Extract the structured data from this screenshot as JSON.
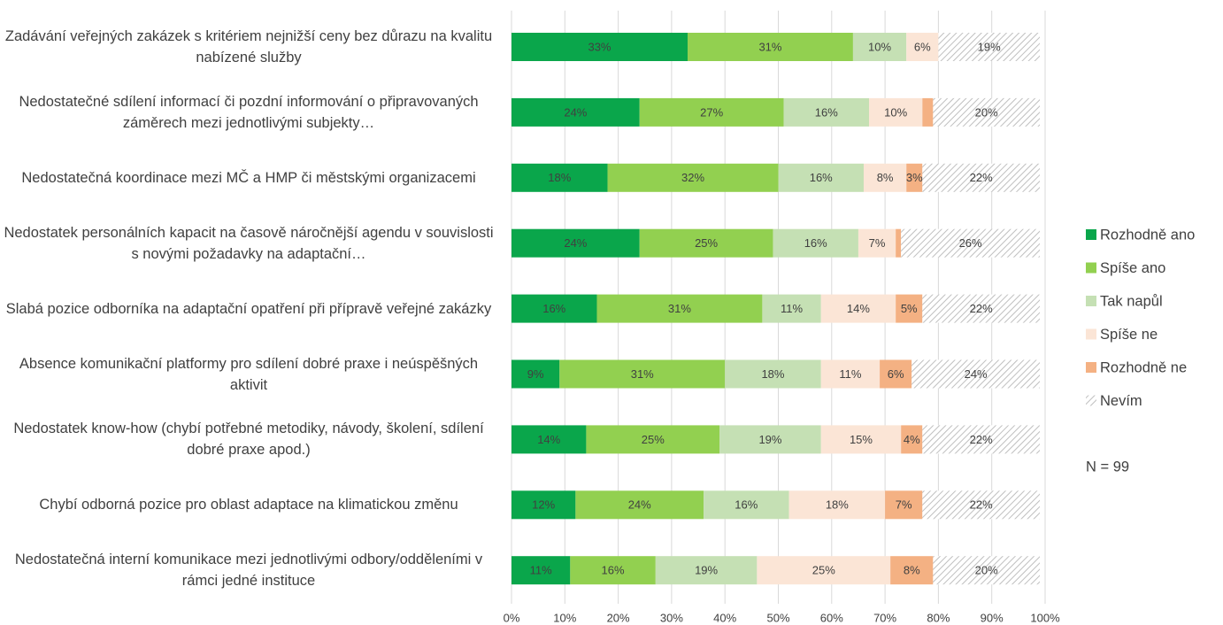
{
  "chart_data": {
    "type": "stacked-barh",
    "categories": [
      "Zadávání veřejných zakázek s kritériem nejnižší ceny bez důrazu na kvalitu nabízené služby",
      "Nedostatečné sdílení informací či pozdní informování o připravovaných záměrech mezi jednotlivými subjekty…",
      "Nedostatečná koordinace mezi MČ a HMP či městskými organizacemi",
      "Nedostatek personálních kapacit na časově náročnější agendu v souvislosti s novými požadavky na adaptační…",
      "Slabá pozice odborníka na adaptační opatření při přípravě veřejné zakázky",
      "Absence komunikační platformy pro sdílení dobré praxe i neúspěšných aktivit",
      "Nedostatek know-how (chybí potřebné metodiky, návody, školení, sdílení dobré praxe apod.)",
      "Chybí odborná pozice pro oblast adaptace na klimatickou změnu",
      "Nedostatečná interní komunikace mezi jednotlivými odbory/odděleními v rámci jedné instituce"
    ],
    "series": [
      {
        "name": "Rozhodně ano",
        "color": "#0aa64b",
        "values": [
          33,
          24,
          18,
          24,
          16,
          9,
          14,
          12,
          11
        ],
        "value_labels": [
          "33%",
          "24%",
          "18%",
          "24%",
          "16%",
          "9%",
          "14%",
          "12%",
          "11%"
        ]
      },
      {
        "name": "Spíše ano",
        "color": "#92d050",
        "values": [
          31,
          27,
          32,
          25,
          31,
          31,
          25,
          24,
          16
        ],
        "value_labels": [
          "31%",
          "27%",
          "32%",
          "25%",
          "31%",
          "31%",
          "25%",
          "24%",
          "16%"
        ]
      },
      {
        "name": "Tak napůl",
        "color": "#c5e0b4",
        "values": [
          10,
          16,
          16,
          16,
          11,
          18,
          19,
          16,
          19
        ],
        "value_labels": [
          "10%",
          "16%",
          "16%",
          "16%",
          "11%",
          "18%",
          "19%",
          "16%",
          "19%"
        ]
      },
      {
        "name": "Spíše ne",
        "color": "#fbe5d6",
        "values": [
          6,
          10,
          8,
          7,
          14,
          11,
          15,
          18,
          25
        ],
        "value_labels": [
          "6%",
          "10%",
          "8%",
          "7%",
          "14%",
          "11%",
          "15%",
          "18%",
          "25%"
        ]
      },
      {
        "name": "Rozhodně ne",
        "color": "#f4b183",
        "values": [
          0,
          2,
          3,
          1,
          5,
          6,
          4,
          7,
          8
        ],
        "value_labels": [
          null,
          null,
          "3%",
          null,
          "5%",
          "6%",
          "4%",
          "7%",
          "8%"
        ]
      },
      {
        "name": "Nevím",
        "color": "#bfbfbf",
        "pattern": "hatch",
        "values": [
          19,
          20,
          22,
          26,
          22,
          24,
          22,
          22,
          20
        ],
        "value_labels": [
          "19%",
          "20%",
          "22%",
          "26%",
          "22%",
          "24%",
          "22%",
          "22%",
          "20%"
        ]
      }
    ],
    "xlim": [
      0,
      100
    ],
    "xticks": [
      {
        "value": 0,
        "label": "0%"
      },
      {
        "value": 10,
        "label": "10%"
      },
      {
        "value": 20,
        "label": "20%"
      },
      {
        "value": 30,
        "label": "30%"
      },
      {
        "value": 40,
        "label": "40%"
      },
      {
        "value": 50,
        "label": "50%"
      },
      {
        "value": 60,
        "label": "60%"
      },
      {
        "value": 70,
        "label": "70%"
      },
      {
        "value": 80,
        "label": "80%"
      },
      {
        "value": 90,
        "label": "90%"
      },
      {
        "value": 100,
        "label": "100%"
      }
    ],
    "grid": true,
    "legend": "right",
    "annotation": "N = 99"
  }
}
